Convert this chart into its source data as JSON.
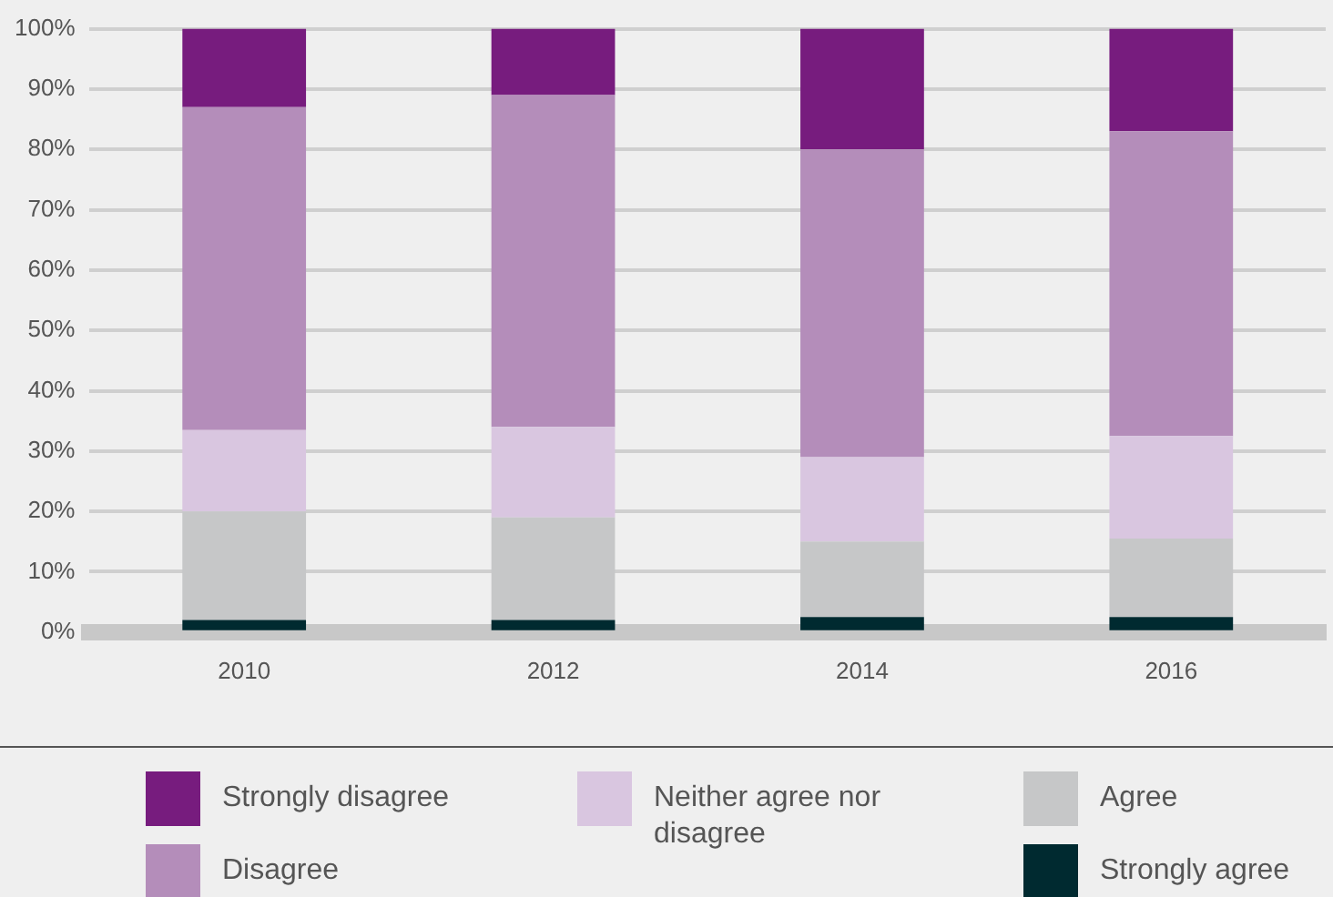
{
  "chart_data": {
    "type": "bar",
    "stacked": true,
    "categories": [
      "2010",
      "2012",
      "2014",
      "2016"
    ],
    "series": [
      {
        "name": "Strongly agree",
        "color": "#002a30",
        "values": [
          2,
          2,
          2.5,
          2.5
        ]
      },
      {
        "name": "Agree",
        "color": "#c6c7c8",
        "values": [
          18,
          17,
          12.5,
          13
        ]
      },
      {
        "name": "Neither agree nor disagree",
        "color": "#d9c6e0",
        "values": [
          13.5,
          15,
          14,
          17
        ]
      },
      {
        "name": "Disagree",
        "color": "#b48dba",
        "values": [
          53.5,
          55,
          51,
          50.5
        ]
      },
      {
        "name": "Strongly disagree",
        "color": "#771c7e",
        "values": [
          13,
          11,
          20,
          17
        ]
      }
    ],
    "ylim": [
      0,
      100
    ],
    "yticks": [
      {
        "value": 0,
        "label": "0%"
      },
      {
        "value": 10,
        "label": "10%"
      },
      {
        "value": 20,
        "label": "20%"
      },
      {
        "value": 30,
        "label": "30%"
      },
      {
        "value": 40,
        "label": "40%"
      },
      {
        "value": 50,
        "label": "50%"
      },
      {
        "value": 60,
        "label": "60%"
      },
      {
        "value": 70,
        "label": "70%"
      },
      {
        "value": 80,
        "label": "80%"
      },
      {
        "value": 90,
        "label": "90%"
      },
      {
        "value": 100,
        "label": "100%"
      }
    ],
    "grid": "y",
    "legend": "bottom"
  }
}
